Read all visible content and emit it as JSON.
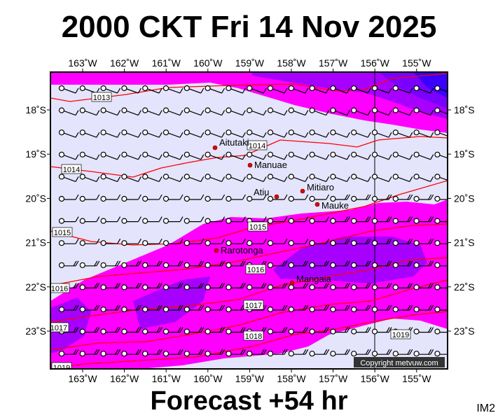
{
  "header": {
    "title": "2000 CKT Fri 14 Nov 2025"
  },
  "footer": {
    "forecast": "Forecast +54 hr",
    "image_code": "IM2"
  },
  "map": {
    "lon_labels": [
      "163˚W",
      "162˚W",
      "161˚W",
      "160˚W",
      "159˚W",
      "158˚W",
      "157˚W",
      "156˚W",
      "155˚W"
    ],
    "lat_labels": [
      "18˚S",
      "19˚S",
      "20˚S",
      "21˚S",
      "22˚S",
      "23˚S"
    ],
    "places": [
      "Aitutaki",
      "Manuae",
      "Atiu",
      "Mitiaro",
      "Mauke",
      "Rarotonga",
      "Mangaia"
    ],
    "isobars": [
      "1013",
      "1014",
      "1014",
      "1015",
      "1015",
      "1016",
      "1016",
      "1017",
      "1017",
      "1018",
      "1019",
      "1019"
    ],
    "copyright": "Copyright metvuw.com",
    "colors": {
      "background": "#e4e4fc",
      "magenta": "#ff00ff",
      "purple": "#a800ff",
      "violet": "#7a00ff",
      "blue": "#3a00ff",
      "isobar": "#ff0000",
      "place": "#e00000"
    }
  }
}
